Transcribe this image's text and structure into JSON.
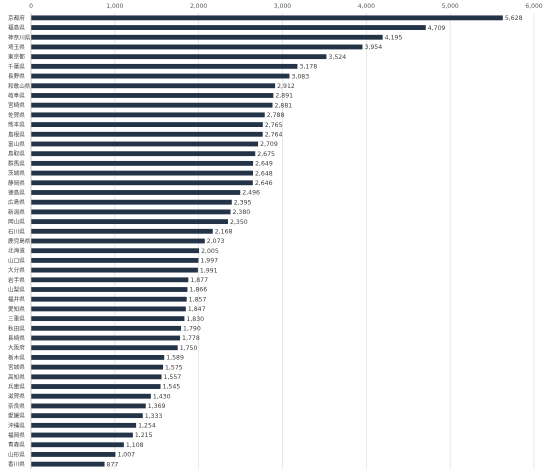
{
  "chart_data": {
    "type": "bar",
    "orientation": "horizontal",
    "title": "",
    "xlabel": "",
    "ylabel": "",
    "xlim": [
      0,
      6000
    ],
    "xticks": [
      "0",
      "1,000",
      "2,000",
      "3,000",
      "4,000",
      "5,000",
      "6,000"
    ],
    "xtick_values": [
      0,
      1000,
      2000,
      3000,
      4000,
      5000,
      6000
    ],
    "grid": true,
    "legend": "none",
    "bar_color": "#243448",
    "categories": [
      "京都府",
      "福島県",
      "神奈川県",
      "埼玉県",
      "東京都",
      "千葉県",
      "長野県",
      "和歌山県",
      "岐阜県",
      "宮崎県",
      "佐賀県",
      "熊本県",
      "島根県",
      "富山県",
      "鳥取県",
      "群馬県",
      "茨城県",
      "静岡県",
      "徳島県",
      "広島県",
      "新潟県",
      "岡山県",
      "石川県",
      "鹿児島県",
      "北海道",
      "山口県",
      "大分県",
      "岩手県",
      "山梨県",
      "福井県",
      "愛知県",
      "三重県",
      "秋田県",
      "長崎県",
      "大阪府",
      "栃木県",
      "宮城県",
      "高知県",
      "兵庫県",
      "滋賀県",
      "奈良県",
      "愛媛県",
      "沖縄県",
      "福岡県",
      "青森県",
      "山形県",
      "香川県"
    ],
    "values": [
      5628,
      4709,
      4195,
      3954,
      3524,
      3178,
      3083,
      2912,
      2891,
      2881,
      2788,
      2765,
      2764,
      2709,
      2675,
      2649,
      2648,
      2646,
      2496,
      2395,
      2380,
      2350,
      2168,
      2073,
      2005,
      1997,
      1991,
      1877,
      1866,
      1857,
      1847,
      1830,
      1790,
      1778,
      1750,
      1589,
      1575,
      1557,
      1545,
      1430,
      1369,
      1333,
      1254,
      1215,
      1108,
      1007,
      877
    ],
    "value_labels": [
      "5,628",
      "4,709",
      "4,195",
      "3,954",
      "3,524",
      "3,178",
      "3,083",
      "2,912",
      "2,891",
      "2,881",
      "2,788",
      "2,765",
      "2,764",
      "2,709",
      "2,675",
      "2,649",
      "2,648",
      "2,646",
      "2,496",
      "2,395",
      "2,380",
      "2,350",
      "2,168",
      "2,073",
      "2,005",
      "1,997",
      "1,991",
      "1,877",
      "1,866",
      "1,857",
      "1,847",
      "1,830",
      "1,790",
      "1,778",
      "1,750",
      "1,589",
      "1,575",
      "1,557",
      "1,545",
      "1,430",
      "1,369",
      "1,333",
      "1,254",
      "1,215",
      "1,108",
      "1,007",
      "877"
    ]
  }
}
